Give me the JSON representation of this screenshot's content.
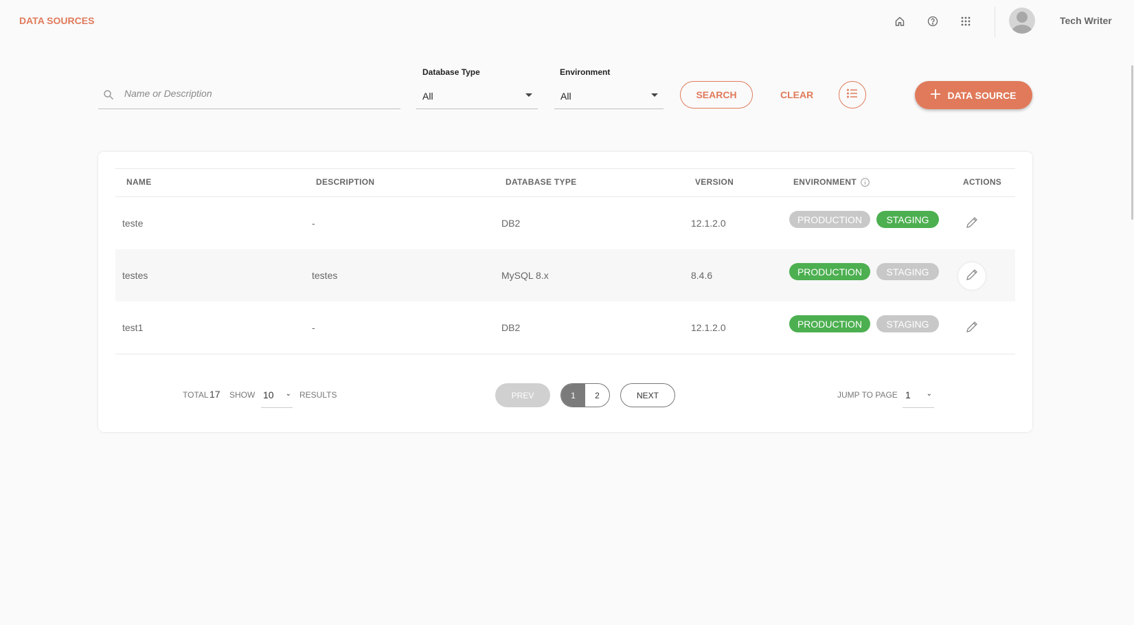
{
  "header": {
    "title": "DATA SOURCES",
    "user_name": "Tech Writer",
    "icons": [
      "home-icon",
      "help-icon",
      "apps-icon",
      "avatar"
    ]
  },
  "filters": {
    "search_placeholder": "Name or Description",
    "database_type": {
      "label": "Database Type",
      "value": "All"
    },
    "environment": {
      "label": "Environment",
      "value": "All"
    },
    "search_label": "SEARCH",
    "clear_label": "CLEAR",
    "add_label": "DATA SOURCE"
  },
  "table": {
    "columns": [
      "NAME",
      "DESCRIPTION",
      "DATABASE TYPE",
      "VERSION",
      "ENVIRONMENT",
      "ACTIONS"
    ],
    "rows": [
      {
        "name": "teste",
        "description": "-",
        "db_type": "DB2",
        "version": "12.1.2.0",
        "production": "PRODUCTION",
        "staging": "STAGING",
        "production_active": false,
        "staging_active": true
      },
      {
        "name": "testes",
        "description": "testes",
        "db_type": "MySQL 8.x",
        "version": "8.4.6",
        "production": "PRODUCTION",
        "staging": "STAGING",
        "production_active": true,
        "staging_active": false
      },
      {
        "name": "test1",
        "description": "-",
        "db_type": "DB2",
        "version": "12.1.2.0",
        "production": "PRODUCTION",
        "staging": "STAGING",
        "production_active": true,
        "staging_active": false
      }
    ]
  },
  "pagination": {
    "total_label": "TOTAL",
    "total": "17",
    "show_label": "SHOW",
    "page_size": "10",
    "results_label": "RESULTS",
    "prev": "PREV",
    "pages": [
      "1",
      "2"
    ],
    "current_page": "1",
    "next": "NEXT",
    "jump_label": "JUMP TO PAGE",
    "jump_value": "1"
  },
  "colors": {
    "accent": "#e07a5a",
    "active": "#4caf50",
    "inactive": "#c8c8c8"
  }
}
